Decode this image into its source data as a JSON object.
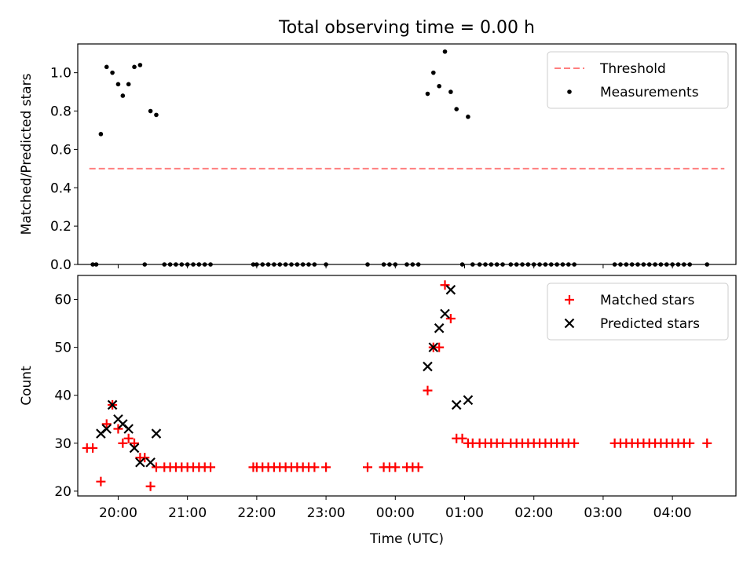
{
  "figure": {
    "title": "Total observing time = 0.00 h"
  },
  "chart_data": [
    {
      "type": "scatter",
      "ylabel": "Matched/Predicted stars",
      "xlim": [
        "19:25",
        "04:55"
      ],
      "ylim": [
        0,
        1.15
      ],
      "yticks": [
        0.0,
        0.2,
        0.4,
        0.6,
        0.8,
        1.0
      ],
      "ytick_labels": [
        "0.0",
        "0.2",
        "0.4",
        "0.6",
        "0.8",
        "1.0"
      ],
      "legend_position": "top-right",
      "threshold": {
        "name": "Threshold",
        "y": 0.5,
        "x_range": [
          "19:35",
          "04:45"
        ],
        "color": "#ff7f7f"
      },
      "series": [
        {
          "name": "Measurements",
          "marker": "dot",
          "color": "#000000",
          "points": [
            [
              "19:38",
              0
            ],
            [
              "19:41",
              0
            ],
            [
              "19:45",
              0.68
            ],
            [
              "19:50",
              1.03
            ],
            [
              "19:55",
              1.0
            ],
            [
              "20:00",
              0.94
            ],
            [
              "20:04",
              0.88
            ],
            [
              "20:09",
              0.94
            ],
            [
              "20:14",
              1.03
            ],
            [
              "20:19",
              1.04
            ],
            [
              "20:23",
              0
            ],
            [
              "20:28",
              0.8
            ],
            [
              "20:33",
              0.78
            ],
            [
              "20:40",
              0
            ],
            [
              "20:45",
              0
            ],
            [
              "20:50",
              0
            ],
            [
              "20:55",
              0
            ],
            [
              "21:00",
              0
            ],
            [
              "21:05",
              0
            ],
            [
              "21:10",
              0
            ],
            [
              "21:15",
              0
            ],
            [
              "21:20",
              0
            ],
            [
              "21:57",
              0
            ],
            [
              "22:00",
              0
            ],
            [
              "22:05",
              0
            ],
            [
              "22:10",
              0
            ],
            [
              "22:15",
              0
            ],
            [
              "22:20",
              0
            ],
            [
              "22:25",
              0
            ],
            [
              "22:30",
              0
            ],
            [
              "22:35",
              0
            ],
            [
              "22:40",
              0
            ],
            [
              "22:45",
              0
            ],
            [
              "22:50",
              0
            ],
            [
              "23:00",
              0
            ],
            [
              "23:36",
              0
            ],
            [
              "23:50",
              0
            ],
            [
              "23:55",
              0
            ],
            [
              "00:00",
              0
            ],
            [
              "00:10",
              0
            ],
            [
              "00:15",
              0
            ],
            [
              "00:20",
              0
            ],
            [
              "00:28",
              0.89
            ],
            [
              "00:33",
              1.0
            ],
            [
              "00:38",
              0.93
            ],
            [
              "00:43",
              1.11
            ],
            [
              "00:48",
              0.9
            ],
            [
              "00:53",
              0.81
            ],
            [
              "00:58",
              0
            ],
            [
              "01:03",
              0.77
            ],
            [
              "01:07",
              0
            ],
            [
              "01:13",
              0
            ],
            [
              "01:18",
              0
            ],
            [
              "01:23",
              0
            ],
            [
              "01:28",
              0
            ],
            [
              "01:33",
              0
            ],
            [
              "01:40",
              0
            ],
            [
              "01:45",
              0
            ],
            [
              "01:50",
              0
            ],
            [
              "01:55",
              0
            ],
            [
              "02:00",
              0
            ],
            [
              "02:05",
              0
            ],
            [
              "02:10",
              0
            ],
            [
              "02:15",
              0
            ],
            [
              "02:20",
              0
            ],
            [
              "02:25",
              0
            ],
            [
              "02:30",
              0
            ],
            [
              "02:35",
              0
            ],
            [
              "03:10",
              0
            ],
            [
              "03:15",
              0
            ],
            [
              "03:20",
              0
            ],
            [
              "03:25",
              0
            ],
            [
              "03:30",
              0
            ],
            [
              "03:35",
              0
            ],
            [
              "03:40",
              0
            ],
            [
              "03:45",
              0
            ],
            [
              "03:50",
              0
            ],
            [
              "03:55",
              0
            ],
            [
              "04:00",
              0
            ],
            [
              "04:05",
              0
            ],
            [
              "04:10",
              0
            ],
            [
              "04:15",
              0
            ],
            [
              "04:30",
              0
            ]
          ]
        }
      ]
    },
    {
      "type": "scatter",
      "xlabel": "Time (UTC)",
      "ylabel": "Count",
      "xlim": [
        "19:25",
        "04:55"
      ],
      "ylim": [
        19,
        65
      ],
      "yticks": [
        20,
        30,
        40,
        50,
        60
      ],
      "ytick_labels": [
        "20",
        "30",
        "40",
        "50",
        "60"
      ],
      "xticks": [
        "20:00",
        "21:00",
        "22:00",
        "23:00",
        "00:00",
        "01:00",
        "02:00",
        "03:00",
        "04:00"
      ],
      "xtick_labels": [
        "20:00",
        "21:00",
        "22:00",
        "23:00",
        "00:00",
        "01:00",
        "02:00",
        "03:00",
        "04:00"
      ],
      "legend_position": "top-right",
      "series": [
        {
          "name": "Matched stars",
          "marker": "plus",
          "color": "#ff0000",
          "points": [
            [
              "19:33",
              29
            ],
            [
              "19:38",
              29
            ],
            [
              "19:45",
              22
            ],
            [
              "19:50",
              34
            ],
            [
              "19:55",
              38
            ],
            [
              "20:00",
              33
            ],
            [
              "20:04",
              30
            ],
            [
              "20:09",
              31
            ],
            [
              "20:14",
              30
            ],
            [
              "20:19",
              27
            ],
            [
              "20:23",
              27
            ],
            [
              "20:28",
              21
            ],
            [
              "20:33",
              25
            ],
            [
              "20:40",
              25
            ],
            [
              "20:45",
              25
            ],
            [
              "20:50",
              25
            ],
            [
              "20:55",
              25
            ],
            [
              "21:00",
              25
            ],
            [
              "21:05",
              25
            ],
            [
              "21:10",
              25
            ],
            [
              "21:15",
              25
            ],
            [
              "21:20",
              25
            ],
            [
              "21:57",
              25
            ],
            [
              "22:00",
              25
            ],
            [
              "22:05",
              25
            ],
            [
              "22:10",
              25
            ],
            [
              "22:15",
              25
            ],
            [
              "22:20",
              25
            ],
            [
              "22:25",
              25
            ],
            [
              "22:30",
              25
            ],
            [
              "22:35",
              25
            ],
            [
              "22:40",
              25
            ],
            [
              "22:45",
              25
            ],
            [
              "22:50",
              25
            ],
            [
              "23:00",
              25
            ],
            [
              "23:36",
              25
            ],
            [
              "23:50",
              25
            ],
            [
              "23:55",
              25
            ],
            [
              "00:00",
              25
            ],
            [
              "00:10",
              25
            ],
            [
              "00:15",
              25
            ],
            [
              "00:20",
              25
            ],
            [
              "00:28",
              41
            ],
            [
              "00:33",
              50
            ],
            [
              "00:38",
              50
            ],
            [
              "00:43",
              63
            ],
            [
              "00:48",
              56
            ],
            [
              "00:53",
              31
            ],
            [
              "00:58",
              31
            ],
            [
              "01:03",
              30
            ],
            [
              "01:07",
              30
            ],
            [
              "01:13",
              30
            ],
            [
              "01:18",
              30
            ],
            [
              "01:23",
              30
            ],
            [
              "01:28",
              30
            ],
            [
              "01:33",
              30
            ],
            [
              "01:40",
              30
            ],
            [
              "01:45",
              30
            ],
            [
              "01:50",
              30
            ],
            [
              "01:55",
              30
            ],
            [
              "02:00",
              30
            ],
            [
              "02:05",
              30
            ],
            [
              "02:10",
              30
            ],
            [
              "02:15",
              30
            ],
            [
              "02:20",
              30
            ],
            [
              "02:25",
              30
            ],
            [
              "02:30",
              30
            ],
            [
              "02:35",
              30
            ],
            [
              "03:10",
              30
            ],
            [
              "03:15",
              30
            ],
            [
              "03:20",
              30
            ],
            [
              "03:25",
              30
            ],
            [
              "03:30",
              30
            ],
            [
              "03:35",
              30
            ],
            [
              "03:40",
              30
            ],
            [
              "03:45",
              30
            ],
            [
              "03:50",
              30
            ],
            [
              "03:55",
              30
            ],
            [
              "04:00",
              30
            ],
            [
              "04:05",
              30
            ],
            [
              "04:10",
              30
            ],
            [
              "04:15",
              30
            ],
            [
              "04:30",
              30
            ]
          ]
        },
        {
          "name": "Predicted stars",
          "marker": "cross",
          "color": "#000000",
          "points": [
            [
              "19:45",
              32
            ],
            [
              "19:50",
              33
            ],
            [
              "19:55",
              38
            ],
            [
              "20:00",
              35
            ],
            [
              "20:04",
              34
            ],
            [
              "20:09",
              33
            ],
            [
              "20:14",
              29
            ],
            [
              "20:19",
              26
            ],
            [
              "20:28",
              26
            ],
            [
              "20:33",
              32
            ],
            [
              "00:28",
              46
            ],
            [
              "00:33",
              50
            ],
            [
              "00:38",
              54
            ],
            [
              "00:43",
              57
            ],
            [
              "00:48",
              62
            ],
            [
              "00:53",
              38
            ],
            [
              "01:03",
              39
            ]
          ]
        }
      ]
    }
  ]
}
